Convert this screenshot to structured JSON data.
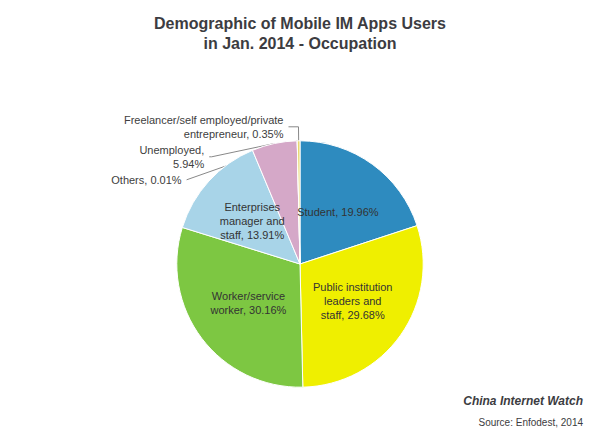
{
  "chart_data": {
    "type": "pie",
    "title": "Demographic of Mobile IM Apps Users\nin Jan. 2014 - Occupation",
    "categories": [
      "Student, 19.96%",
      "Public institution\nleaders and\nstaff, 29.68%",
      "Worker/service\nworker, 30.16%",
      "Enterprises\nmanager and\nstaff, 13.91%",
      "Unemployed,\n5.94%",
      "Others, 0.01%",
      "Freelancer/self employed/private\nentrepreneur, 0.35%"
    ],
    "values": [
      19.96,
      29.68,
      30.16,
      13.91,
      5.94,
      0.01,
      0.35
    ],
    "colors": [
      "#2E8BBF",
      "#EFEF00",
      "#7DC742",
      "#A8D4E8",
      "#D5A8C8",
      "#E0E8B0",
      "#E8D870"
    ],
    "data_labels": true,
    "annotations": [
      "China Internet Watch",
      "Source: Enfodest, 2014"
    ]
  }
}
